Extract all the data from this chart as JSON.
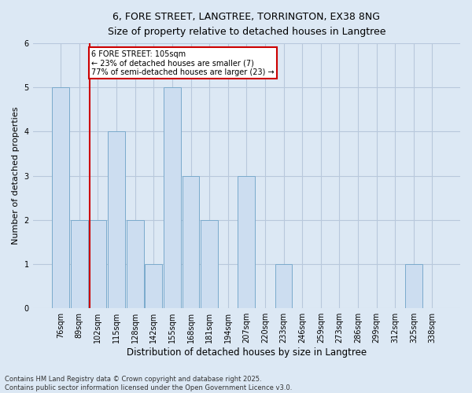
{
  "title_line1": "6, FORE STREET, LANGTREE, TORRINGTON, EX38 8NG",
  "title_line2": "Size of property relative to detached houses in Langtree",
  "xlabel": "Distribution of detached houses by size in Langtree",
  "ylabel": "Number of detached properties",
  "annotation_line1": "6 FORE STREET: 105sqm",
  "annotation_line2": "← 23% of detached houses are smaller (7)",
  "annotation_line3": "77% of semi-detached houses are larger (23) →",
  "footer_line1": "Contains HM Land Registry data © Crown copyright and database right 2025.",
  "footer_line2": "Contains public sector information licensed under the Open Government Licence v3.0.",
  "bins": [
    "76sqm",
    "89sqm",
    "102sqm",
    "115sqm",
    "128sqm",
    "142sqm",
    "155sqm",
    "168sqm",
    "181sqm",
    "194sqm",
    "207sqm",
    "220sqm",
    "233sqm",
    "246sqm",
    "259sqm",
    "273sqm",
    "286sqm",
    "299sqm",
    "312sqm",
    "325sqm",
    "338sqm"
  ],
  "values": [
    5,
    2,
    2,
    4,
    2,
    1,
    5,
    3,
    2,
    0,
    3,
    0,
    1,
    0,
    0,
    0,
    0,
    0,
    0,
    1,
    0
  ],
  "bar_color": "#ccddf0",
  "bar_edge_color": "#7aaacc",
  "highlight_bar_index": 2,
  "highlight_line_color": "#cc0000",
  "annotation_box_color": "#cc0000",
  "background_color": "#dce8f4",
  "grid_color": "#b8c8dc",
  "ylim": [
    0,
    6
  ],
  "yticks": [
    0,
    1,
    2,
    3,
    4,
    5,
    6
  ]
}
